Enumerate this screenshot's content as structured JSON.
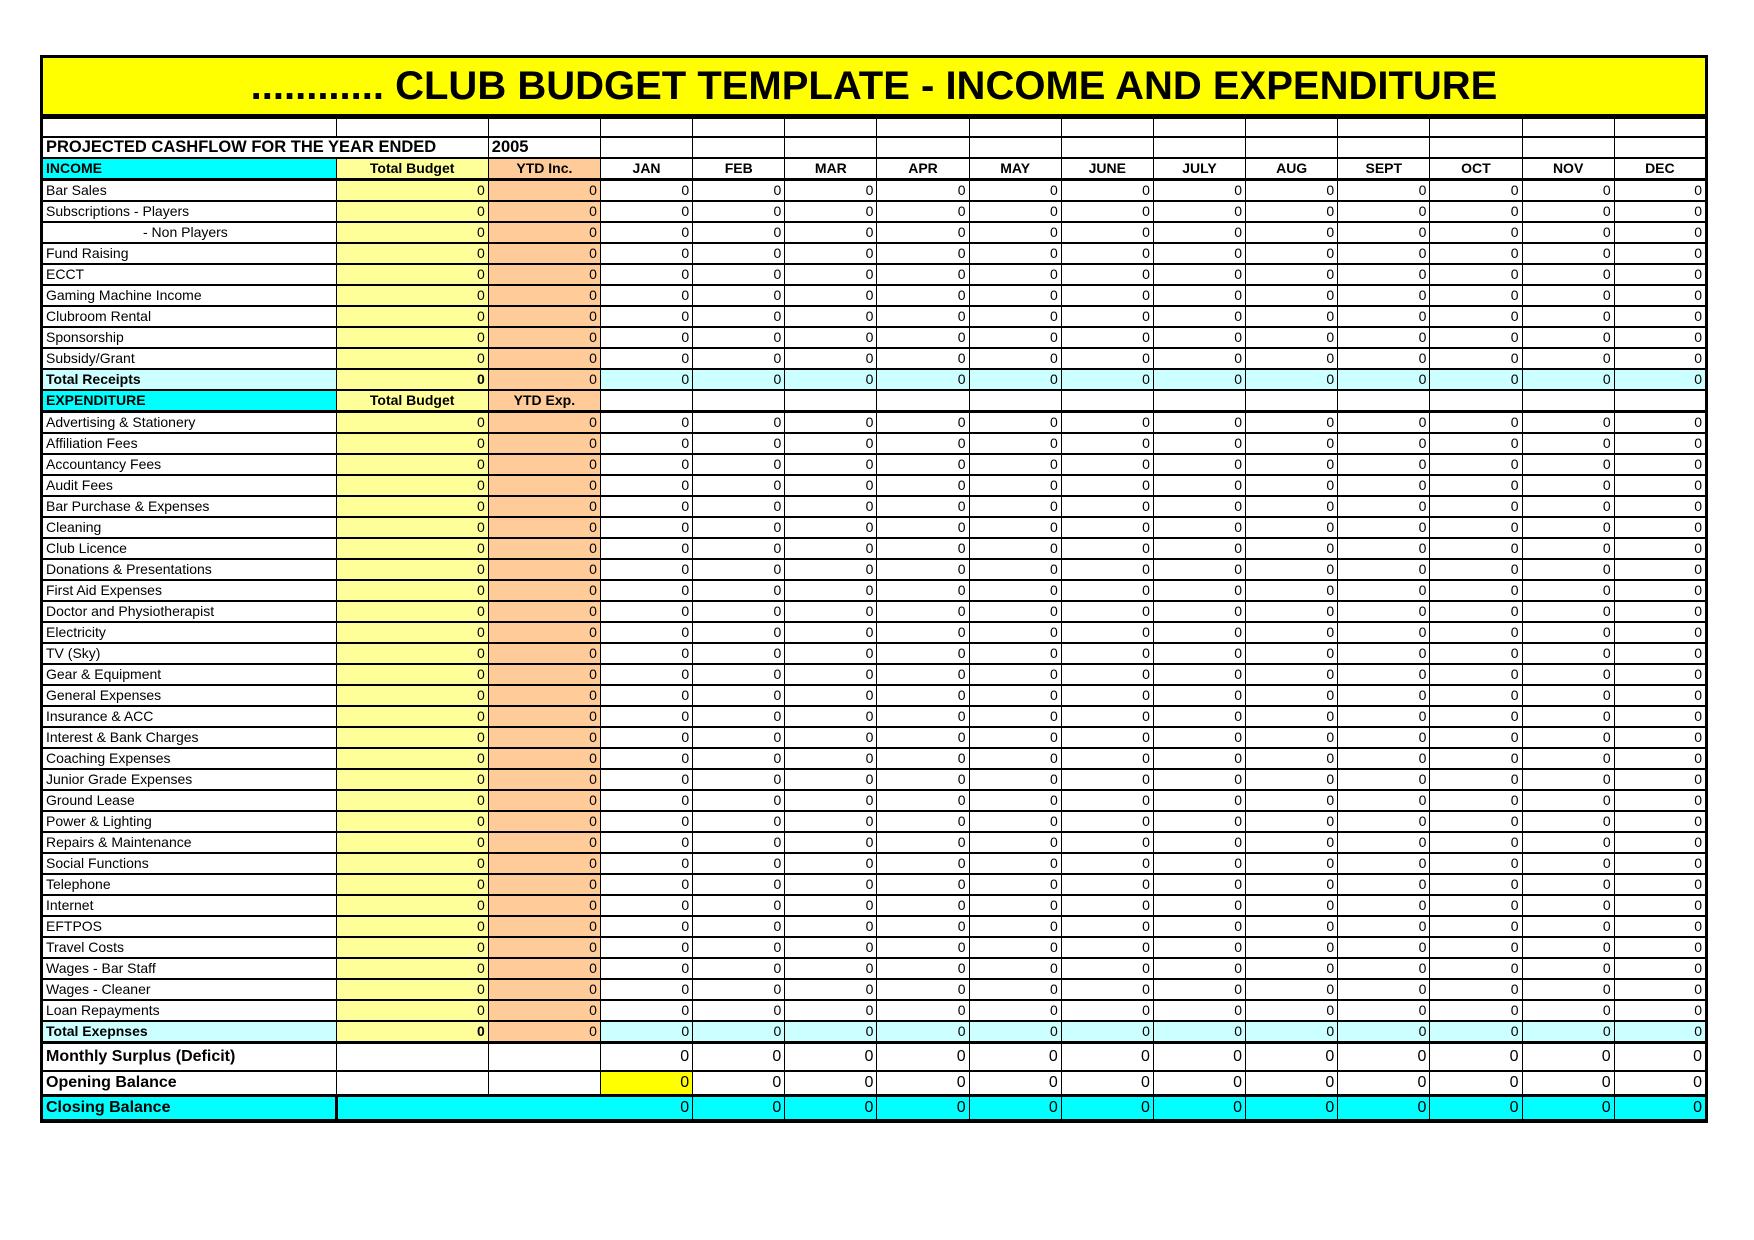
{
  "title": "............  CLUB BUDGET TEMPLATE - INCOME AND EXPENDITURE",
  "subtitle": {
    "label": "PROJECTED CASHFLOW FOR THE YEAR ENDED",
    "year": "2005"
  },
  "columns": {
    "income_header": "INCOME",
    "expenditure_header": "EXPENDITURE",
    "total_budget": "Total Budget",
    "ytd_income": "YTD Inc.",
    "ytd_expenditure": "YTD Exp.",
    "months": [
      "JAN",
      "FEB",
      "MAR",
      "APR",
      "MAY",
      "JUNE",
      "JULY",
      "AUG",
      "SEPT",
      "OCT",
      "NOV",
      "DEC"
    ]
  },
  "income": {
    "rows": [
      {
        "label": "Bar Sales",
        "total_budget": "0",
        "ytd": "0",
        "months": [
          "0",
          "0",
          "0",
          "0",
          "0",
          "0",
          "0",
          "0",
          "0",
          "0",
          "0",
          "0"
        ]
      },
      {
        "label": "Subscriptions - Players",
        "total_budget": "0",
        "ytd": "0",
        "months": [
          "0",
          "0",
          "0",
          "0",
          "0",
          "0",
          "0",
          "0",
          "0",
          "0",
          "0",
          "0"
        ]
      },
      {
        "label": "- Non Players",
        "indent": true,
        "total_budget": "0",
        "ytd": "0",
        "months": [
          "0",
          "0",
          "0",
          "0",
          "0",
          "0",
          "0",
          "0",
          "0",
          "0",
          "0",
          "0"
        ]
      },
      {
        "label": "Fund Raising",
        "total_budget": "0",
        "ytd": "0",
        "months": [
          "0",
          "0",
          "0",
          "0",
          "0",
          "0",
          "0",
          "0",
          "0",
          "0",
          "0",
          "0"
        ]
      },
      {
        "label": "ECCT",
        "total_budget": "0",
        "ytd": "0",
        "months": [
          "0",
          "0",
          "0",
          "0",
          "0",
          "0",
          "0",
          "0",
          "0",
          "0",
          "0",
          "0"
        ]
      },
      {
        "label": "Gaming Machine Income",
        "total_budget": "0",
        "ytd": "0",
        "months": [
          "0",
          "0",
          "0",
          "0",
          "0",
          "0",
          "0",
          "0",
          "0",
          "0",
          "0",
          "0"
        ]
      },
      {
        "label": "Clubroom Rental",
        "total_budget": "0",
        "ytd": "0",
        "months": [
          "0",
          "0",
          "0",
          "0",
          "0",
          "0",
          "0",
          "0",
          "0",
          "0",
          "0",
          "0"
        ]
      },
      {
        "label": "Sponsorship",
        "total_budget": "0",
        "ytd": "0",
        "months": [
          "0",
          "0",
          "0",
          "0",
          "0",
          "0",
          "0",
          "0",
          "0",
          "0",
          "0",
          "0"
        ]
      },
      {
        "label": "Subsidy/Grant",
        "total_budget": "0",
        "ytd": "0",
        "months": [
          "0",
          "0",
          "0",
          "0",
          "0",
          "0",
          "0",
          "0",
          "0",
          "0",
          "0",
          "0"
        ]
      }
    ],
    "total": {
      "label": "Total Receipts",
      "total_budget": "0",
      "ytd": "0",
      "months": [
        "0",
        "0",
        "0",
        "0",
        "0",
        "0",
        "0",
        "0",
        "0",
        "0",
        "0",
        "0"
      ]
    }
  },
  "expenditure": {
    "rows": [
      {
        "label": "Advertising & Stationery",
        "total_budget": "0",
        "ytd": "0",
        "months": [
          "0",
          "0",
          "0",
          "0",
          "0",
          "0",
          "0",
          "0",
          "0",
          "0",
          "0",
          "0"
        ]
      },
      {
        "label": "Affiliation Fees",
        "total_budget": "0",
        "ytd": "0",
        "months": [
          "0",
          "0",
          "0",
          "0",
          "0",
          "0",
          "0",
          "0",
          "0",
          "0",
          "0",
          "0"
        ]
      },
      {
        "label": "Accountancy Fees",
        "total_budget": "0",
        "ytd": "0",
        "months": [
          "0",
          "0",
          "0",
          "0",
          "0",
          "0",
          "0",
          "0",
          "0",
          "0",
          "0",
          "0"
        ]
      },
      {
        "label": "Audit Fees",
        "total_budget": "0",
        "ytd": "0",
        "months": [
          "0",
          "0",
          "0",
          "0",
          "0",
          "0",
          "0",
          "0",
          "0",
          "0",
          "0",
          "0"
        ]
      },
      {
        "label": "Bar Purchase & Expenses",
        "total_budget": "0",
        "ytd": "0",
        "months": [
          "0",
          "0",
          "0",
          "0",
          "0",
          "0",
          "0",
          "0",
          "0",
          "0",
          "0",
          "0"
        ]
      },
      {
        "label": "Cleaning",
        "total_budget": "0",
        "ytd": "0",
        "months": [
          "0",
          "0",
          "0",
          "0",
          "0",
          "0",
          "0",
          "0",
          "0",
          "0",
          "0",
          "0"
        ]
      },
      {
        "label": "Club Licence",
        "total_budget": "0",
        "ytd": "0",
        "months": [
          "0",
          "0",
          "0",
          "0",
          "0",
          "0",
          "0",
          "0",
          "0",
          "0",
          "0",
          "0"
        ]
      },
      {
        "label": "Donations & Presentations",
        "total_budget": "0",
        "ytd": "0",
        "months": [
          "0",
          "0",
          "0",
          "0",
          "0",
          "0",
          "0",
          "0",
          "0",
          "0",
          "0",
          "0"
        ]
      },
      {
        "label": "First Aid Expenses",
        "total_budget": "0",
        "ytd": "0",
        "months": [
          "0",
          "0",
          "0",
          "0",
          "0",
          "0",
          "0",
          "0",
          "0",
          "0",
          "0",
          "0"
        ]
      },
      {
        "label": "Doctor and Physiotherapist",
        "total_budget": "0",
        "ytd": "0",
        "months": [
          "0",
          "0",
          "0",
          "0",
          "0",
          "0",
          "0",
          "0",
          "0",
          "0",
          "0",
          "0"
        ]
      },
      {
        "label": "Electricity",
        "total_budget": "0",
        "ytd": "0",
        "months": [
          "0",
          "0",
          "0",
          "0",
          "0",
          "0",
          "0",
          "0",
          "0",
          "0",
          "0",
          "0"
        ]
      },
      {
        "label": "TV (Sky)",
        "total_budget": "0",
        "ytd": "0",
        "months": [
          "0",
          "0",
          "0",
          "0",
          "0",
          "0",
          "0",
          "0",
          "0",
          "0",
          "0",
          "0"
        ]
      },
      {
        "label": "Gear & Equipment",
        "total_budget": "0",
        "ytd": "0",
        "months": [
          "0",
          "0",
          "0",
          "0",
          "0",
          "0",
          "0",
          "0",
          "0",
          "0",
          "0",
          "0"
        ]
      },
      {
        "label": "General Expenses",
        "total_budget": "0",
        "ytd": "0",
        "months": [
          "0",
          "0",
          "0",
          "0",
          "0",
          "0",
          "0",
          "0",
          "0",
          "0",
          "0",
          "0"
        ]
      },
      {
        "label": "Insurance & ACC",
        "total_budget": "0",
        "ytd": "0",
        "months": [
          "0",
          "0",
          "0",
          "0",
          "0",
          "0",
          "0",
          "0",
          "0",
          "0",
          "0",
          "0"
        ]
      },
      {
        "label": "Interest & Bank Charges",
        "total_budget": "0",
        "ytd": "0",
        "months": [
          "0",
          "0",
          "0",
          "0",
          "0",
          "0",
          "0",
          "0",
          "0",
          "0",
          "0",
          "0"
        ]
      },
      {
        "label": "Coaching Expenses",
        "total_budget": "0",
        "ytd": "0",
        "months": [
          "0",
          "0",
          "0",
          "0",
          "0",
          "0",
          "0",
          "0",
          "0",
          "0",
          "0",
          "0"
        ]
      },
      {
        "label": "Junior Grade Expenses",
        "total_budget": "0",
        "ytd": "0",
        "months": [
          "0",
          "0",
          "0",
          "0",
          "0",
          "0",
          "0",
          "0",
          "0",
          "0",
          "0",
          "0"
        ]
      },
      {
        "label": "Ground Lease",
        "total_budget": "0",
        "ytd": "0",
        "months": [
          "0",
          "0",
          "0",
          "0",
          "0",
          "0",
          "0",
          "0",
          "0",
          "0",
          "0",
          "0"
        ]
      },
      {
        "label": "Power & Lighting",
        "total_budget": "0",
        "ytd": "0",
        "months": [
          "0",
          "0",
          "0",
          "0",
          "0",
          "0",
          "0",
          "0",
          "0",
          "0",
          "0",
          "0"
        ]
      },
      {
        "label": "Repairs & Maintenance",
        "total_budget": "0",
        "ytd": "0",
        "months": [
          "0",
          "0",
          "0",
          "0",
          "0",
          "0",
          "0",
          "0",
          "0",
          "0",
          "0",
          "0"
        ]
      },
      {
        "label": "Social Functions",
        "total_budget": "0",
        "ytd": "0",
        "months": [
          "0",
          "0",
          "0",
          "0",
          "0",
          "0",
          "0",
          "0",
          "0",
          "0",
          "0",
          "0"
        ]
      },
      {
        "label": "Telephone",
        "total_budget": "0",
        "ytd": "0",
        "months": [
          "0",
          "0",
          "0",
          "0",
          "0",
          "0",
          "0",
          "0",
          "0",
          "0",
          "0",
          "0"
        ]
      },
      {
        "label": "Internet",
        "total_budget": "0",
        "ytd": "0",
        "months": [
          "0",
          "0",
          "0",
          "0",
          "0",
          "0",
          "0",
          "0",
          "0",
          "0",
          "0",
          "0"
        ]
      },
      {
        "label": "EFTPOS",
        "total_budget": "0",
        "ytd": "0",
        "months": [
          "0",
          "0",
          "0",
          "0",
          "0",
          "0",
          "0",
          "0",
          "0",
          "0",
          "0",
          "0"
        ]
      },
      {
        "label": "Travel Costs",
        "total_budget": "0",
        "ytd": "0",
        "months": [
          "0",
          "0",
          "0",
          "0",
          "0",
          "0",
          "0",
          "0",
          "0",
          "0",
          "0",
          "0"
        ]
      },
      {
        "label": "Wages - Bar Staff",
        "total_budget": "0",
        "ytd": "0",
        "months": [
          "0",
          "0",
          "0",
          "0",
          "0",
          "0",
          "0",
          "0",
          "0",
          "0",
          "0",
          "0"
        ]
      },
      {
        "label": "Wages - Cleaner",
        "total_budget": "0",
        "ytd": "0",
        "months": [
          "0",
          "0",
          "0",
          "0",
          "0",
          "0",
          "0",
          "0",
          "0",
          "0",
          "0",
          "0"
        ]
      },
      {
        "label": "Loan Repayments",
        "total_budget": "0",
        "ytd": "0",
        "months": [
          "0",
          "0",
          "0",
          "0",
          "0",
          "0",
          "0",
          "0",
          "0",
          "0",
          "0",
          "0"
        ]
      }
    ],
    "total": {
      "label": "Total  Exepnses",
      "total_budget": "0",
      "ytd": "0",
      "months": [
        "0",
        "0",
        "0",
        "0",
        "0",
        "0",
        "0",
        "0",
        "0",
        "0",
        "0",
        "0"
      ]
    }
  },
  "summary": {
    "monthly_surplus": {
      "label": "Monthly Surplus (Deficit)",
      "months": [
        "0",
        "0",
        "0",
        "0",
        "0",
        "0",
        "0",
        "0",
        "0",
        "0",
        "0",
        "0"
      ]
    },
    "opening_balance": {
      "label": "Opening Balance",
      "months": [
        "0",
        "0",
        "0",
        "0",
        "0",
        "0",
        "0",
        "0",
        "0",
        "0",
        "0",
        "0"
      ],
      "highlighted_month": "JAN"
    },
    "closing_balance": {
      "label": "Closing Balance",
      "merged_value": "0",
      "months_feb_dec": [
        "0",
        "0",
        "0",
        "0",
        "0",
        "0",
        "0",
        "0",
        "0",
        "0",
        "0"
      ]
    }
  },
  "colors": {
    "title_bg": "#ffff00",
    "section_bg": "#00ffff",
    "budget_col_bg": "#ffff99",
    "ytd_col_bg": "#ffcc99",
    "total_row_bg": "#ccffff",
    "opening_jan_highlight_bg": "#ffff00",
    "grid_line": "#000000"
  }
}
